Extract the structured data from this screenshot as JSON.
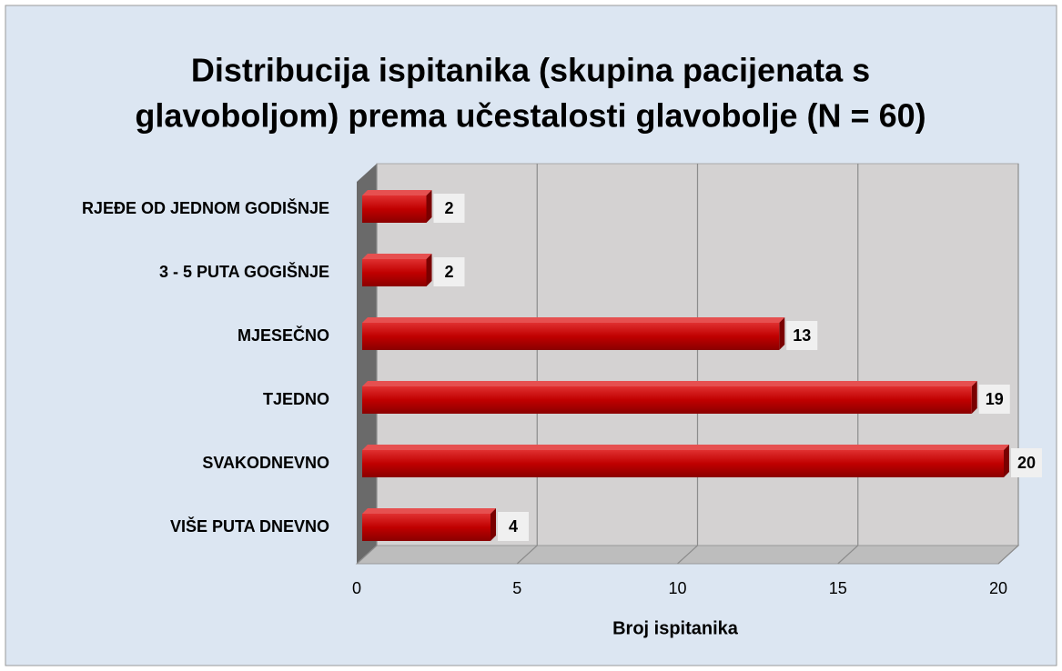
{
  "chart_data": {
    "type": "bar",
    "orientation": "horizontal",
    "title": [
      "Distribucija ispitanika (skupina pacijenata s",
      "glavoboljom) prema učestalosti glavobolje (N = 60)"
    ],
    "x_label": "Broj ispitanika",
    "categories": [
      "RJEĐE OD JEDNOM GODIŠNJE",
      "3 - 5 PUTA GOGIŠNJE",
      "MJESEČNO",
      "TJEDNO",
      "SVAKODNEVNO",
      "VIŠE PUTA DNEVNO"
    ],
    "values": [
      2,
      2,
      13,
      19,
      20,
      4
    ],
    "color": "#c00000",
    "xlim": [
      0,
      20
    ],
    "xticks": [
      0,
      5,
      10,
      15,
      20
    ],
    "grid": true
  }
}
